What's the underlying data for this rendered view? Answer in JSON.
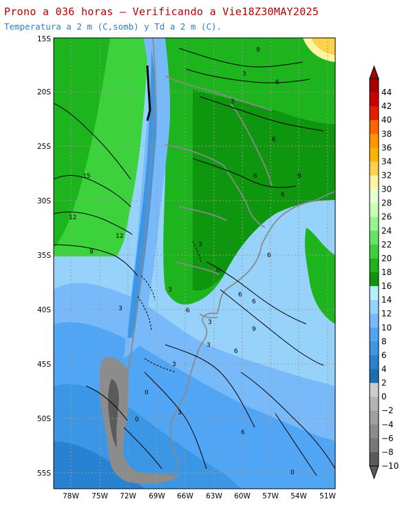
{
  "title": "Prono a 036 horas — Verificando a Vie18Z30MAY2025",
  "subtitle": "Temperatura a 2 m (C,somb) y Td a 2 m (C).",
  "map": {
    "lat_labels": [
      "15S",
      "20S",
      "25S",
      "30S",
      "35S",
      "40S",
      "45S",
      "50S",
      "55S"
    ],
    "lon_labels": [
      "78W",
      "75W",
      "72W",
      "69W",
      "66W",
      "63W",
      "60W",
      "57W",
      "54W",
      "51W"
    ],
    "contour_labels": [
      "9",
      "3",
      "6",
      "3",
      "6",
      "9",
      "6",
      "15",
      "12",
      "12",
      "9",
      "6",
      "6",
      "6",
      "3",
      "0",
      "6",
      "3",
      "6",
      "9",
      "6",
      "3",
      "3",
      "0",
      "3",
      "0",
      "6",
      "3",
      "3",
      "0"
    ]
  },
  "legend": {
    "labels": [
      "44",
      "42",
      "40",
      "38",
      "36",
      "34",
      "32",
      "30",
      "28",
      "26",
      "24",
      "22",
      "20",
      "18",
      "16",
      "14",
      "12",
      "10",
      "8",
      "6",
      "4",
      "2",
      "0",
      "−2",
      "−4",
      "−6",
      "−8",
      "−10"
    ],
    "colors": [
      "#a50000",
      "#cc0000",
      "#e61e00",
      "#ff6400",
      "#ff9600",
      "#ffb400",
      "#ffd24b",
      "#fff5a0",
      "#e6ffd2",
      "#c8ffb4",
      "#96f58c",
      "#64e664",
      "#3cd23c",
      "#1eb41e",
      "#0f960f",
      "#b4f0fa",
      "#96d2fa",
      "#78b9fa",
      "#50a5f5",
      "#3c96e6",
      "#2882d2",
      "#1e6eb4",
      "#cccccc",
      "#b4b4b4",
      "#a0a0a0",
      "#8c8c8c",
      "#787878",
      "#5a5a5a"
    ]
  }
}
